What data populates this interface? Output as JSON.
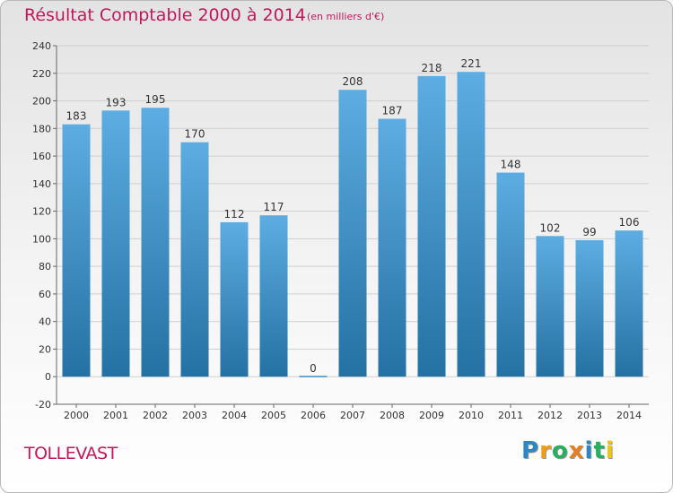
{
  "title": "Résultat Comptable 2000 à 2014",
  "subtitle": "(en milliers d'€)",
  "commune": "TOLLEVAST",
  "logo": {
    "text": "Proxiti",
    "letters": [
      {
        "ch": "P",
        "color": "#2e86c1"
      },
      {
        "ch": "r",
        "color": "#f39c12"
      },
      {
        "ch": "o",
        "color": "#27ae60"
      },
      {
        "ch": "x",
        "color": "#e67e22"
      },
      {
        "ch": "i",
        "color": "#2e86c1"
      },
      {
        "ch": "t",
        "color": "#27ae60"
      },
      {
        "ch": "i",
        "color": "#f1c40f"
      }
    ]
  },
  "colors": {
    "title": "#c2185b",
    "bar_top": "#5dade2",
    "bar_bottom": "#2471a3",
    "grid": "#cfcfcf"
  },
  "chart_data": {
    "type": "bar",
    "categories": [
      "2000",
      "2001",
      "2002",
      "2003",
      "2004",
      "2005",
      "2006",
      "2007",
      "2008",
      "2009",
      "2010",
      "2011",
      "2012",
      "2013",
      "2014"
    ],
    "values": [
      183,
      193,
      195,
      170,
      112,
      117,
      0,
      208,
      187,
      218,
      221,
      148,
      102,
      99,
      106
    ],
    "ylim": [
      -20,
      240
    ],
    "yticks": [
      -20,
      0,
      20,
      40,
      60,
      80,
      100,
      120,
      140,
      160,
      180,
      200,
      220,
      240
    ],
    "grid": true,
    "xlabel": "",
    "ylabel": ""
  }
}
